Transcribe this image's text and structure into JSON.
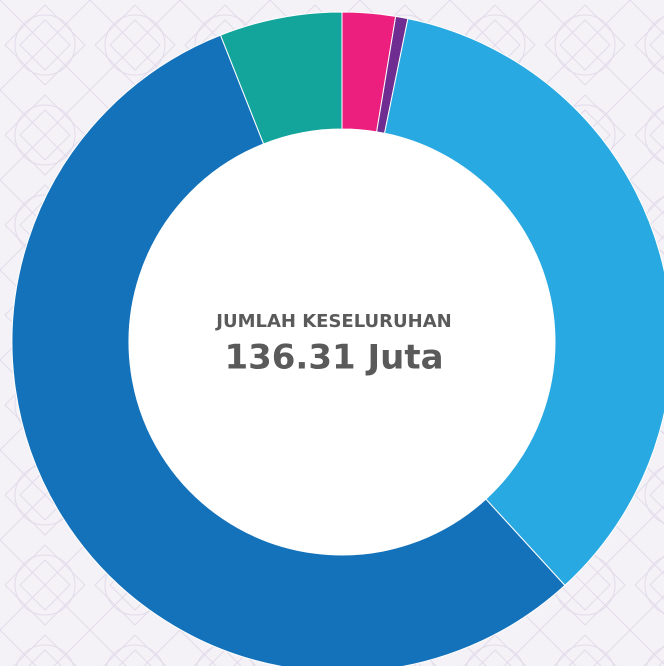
{
  "chart_data": {
    "type": "donut",
    "center_label": "JUMLAH KESELURUHAN",
    "center_value": "136.31 Juta",
    "values": [
      2.6,
      0.6,
      35.0,
      55.8,
      6.0
    ],
    "colors": [
      "#ec1f7f",
      "#6f2c91",
      "#29a9e1",
      "#1472bb",
      "#13a59b"
    ]
  }
}
